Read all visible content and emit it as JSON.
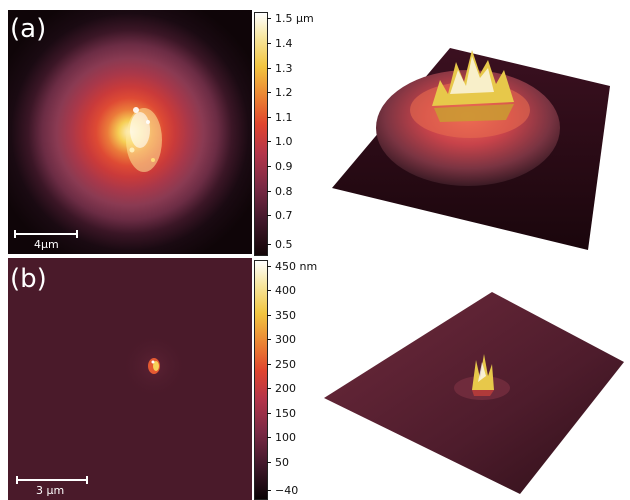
{
  "panels": [
    {
      "label": "(a)",
      "scalebar_text": "4μm",
      "colorbar_ticks": [
        "1.5 μm",
        "1.4",
        "1.3",
        "1.2",
        "1.1",
        "1.0",
        "0.9",
        "0.8",
        "0.7",
        "0.5"
      ]
    },
    {
      "label": "(b)",
      "scalebar_text": "3 μm",
      "colorbar_ticks": [
        "450 nm",
        "400",
        "350",
        "300",
        "250",
        "200",
        "150",
        "100",
        "50",
        "−40"
      ]
    }
  ],
  "colors": {
    "colormap_top": "#ffffff",
    "colormap_upper": "#f2d25a",
    "colormap_mid": "#e0452f",
    "colormap_low": "#7a1f3d",
    "colormap_bottom": "#1a0a12",
    "background_b": "#4a1a2a"
  }
}
